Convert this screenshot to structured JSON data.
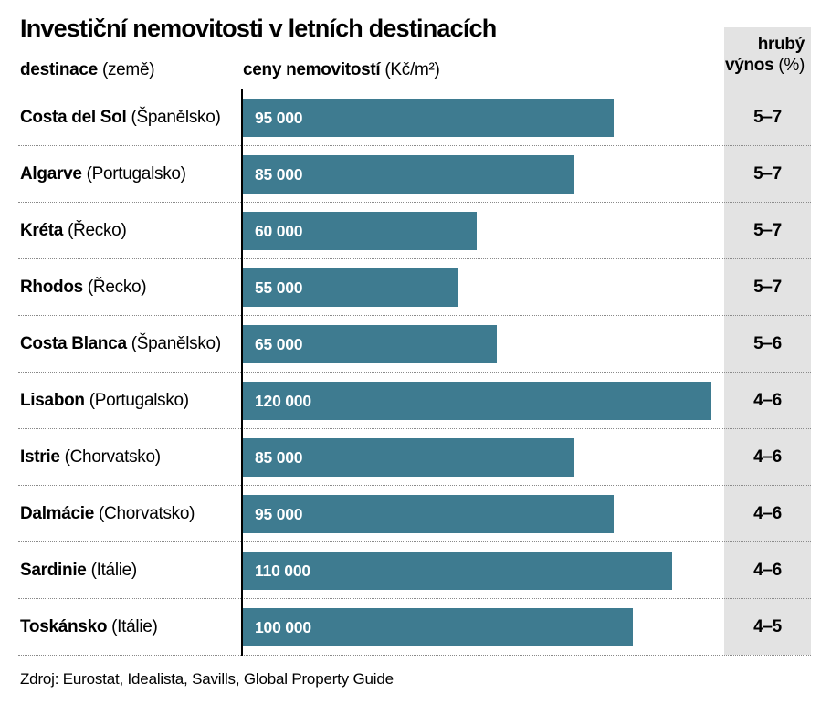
{
  "title": "Investiční nemovitosti v letních destinacích",
  "columns": {
    "destination": {
      "label": "destinace",
      "sublabel": "(země)"
    },
    "price": {
      "label": "ceny nemovitostí",
      "sublabel": "(Kč/m²)"
    },
    "yield": {
      "line1": "hrubý",
      "line2": "výnos",
      "line2_sub": "(%)"
    }
  },
  "chart_data": {
    "type": "bar",
    "orientation": "horizontal",
    "title": "Investiční nemovitosti v letních destinacích",
    "xlabel": "ceny nemovitostí (Kč/m²)",
    "ylabel": "destinace (země)",
    "value_unit": "Kč/m²",
    "yield_unit": "%",
    "xlim": [
      0,
      123300
    ],
    "grid": false,
    "legend": false,
    "rows": [
      {
        "destination": "Costa del Sol",
        "country": "(Španělsko)",
        "price": 95000,
        "price_label": "95 000",
        "yield": "5–7"
      },
      {
        "destination": "Algarve",
        "country": "(Portugalsko)",
        "price": 85000,
        "price_label": "85 000",
        "yield": "5–7"
      },
      {
        "destination": "Kréta",
        "country": "(Řecko)",
        "price": 60000,
        "price_label": "60 000",
        "yield": "5–7"
      },
      {
        "destination": "Rhodos",
        "country": "(Řecko)",
        "price": 55000,
        "price_label": "55 000",
        "yield": "5–7"
      },
      {
        "destination": "Costa Blanca",
        "country": "(Španělsko)",
        "price": 65000,
        "price_label": "65 000",
        "yield": "5–6"
      },
      {
        "destination": "Lisabon",
        "country": "(Portugalsko)",
        "price": 120000,
        "price_label": "120 000",
        "yield": "4–6"
      },
      {
        "destination": "Istrie",
        "country": "(Chorvatsko)",
        "price": 85000,
        "price_label": "85 000",
        "yield": "4–6"
      },
      {
        "destination": "Dalmácie",
        "country": "(Chorvatsko)",
        "price": 95000,
        "price_label": "95 000",
        "yield": "4–6"
      },
      {
        "destination": "Sardinie",
        "country": "(Itálie)",
        "price": 110000,
        "price_label": "110 000",
        "yield": "4–6"
      },
      {
        "destination": "Toskánsko",
        "country": "(Itálie)",
        "price": 100000,
        "price_label": "100 000",
        "yield": "4–5"
      }
    ]
  },
  "source": "Zdroj: Eurostat, Idealista, Savills, Global Property Guide",
  "colors": {
    "bar": "#3e7b90",
    "yield_column_bg": "#e3e3e3",
    "dotted_line": "#8a8a8a",
    "text": "#000000",
    "bar_label": "#ffffff"
  }
}
